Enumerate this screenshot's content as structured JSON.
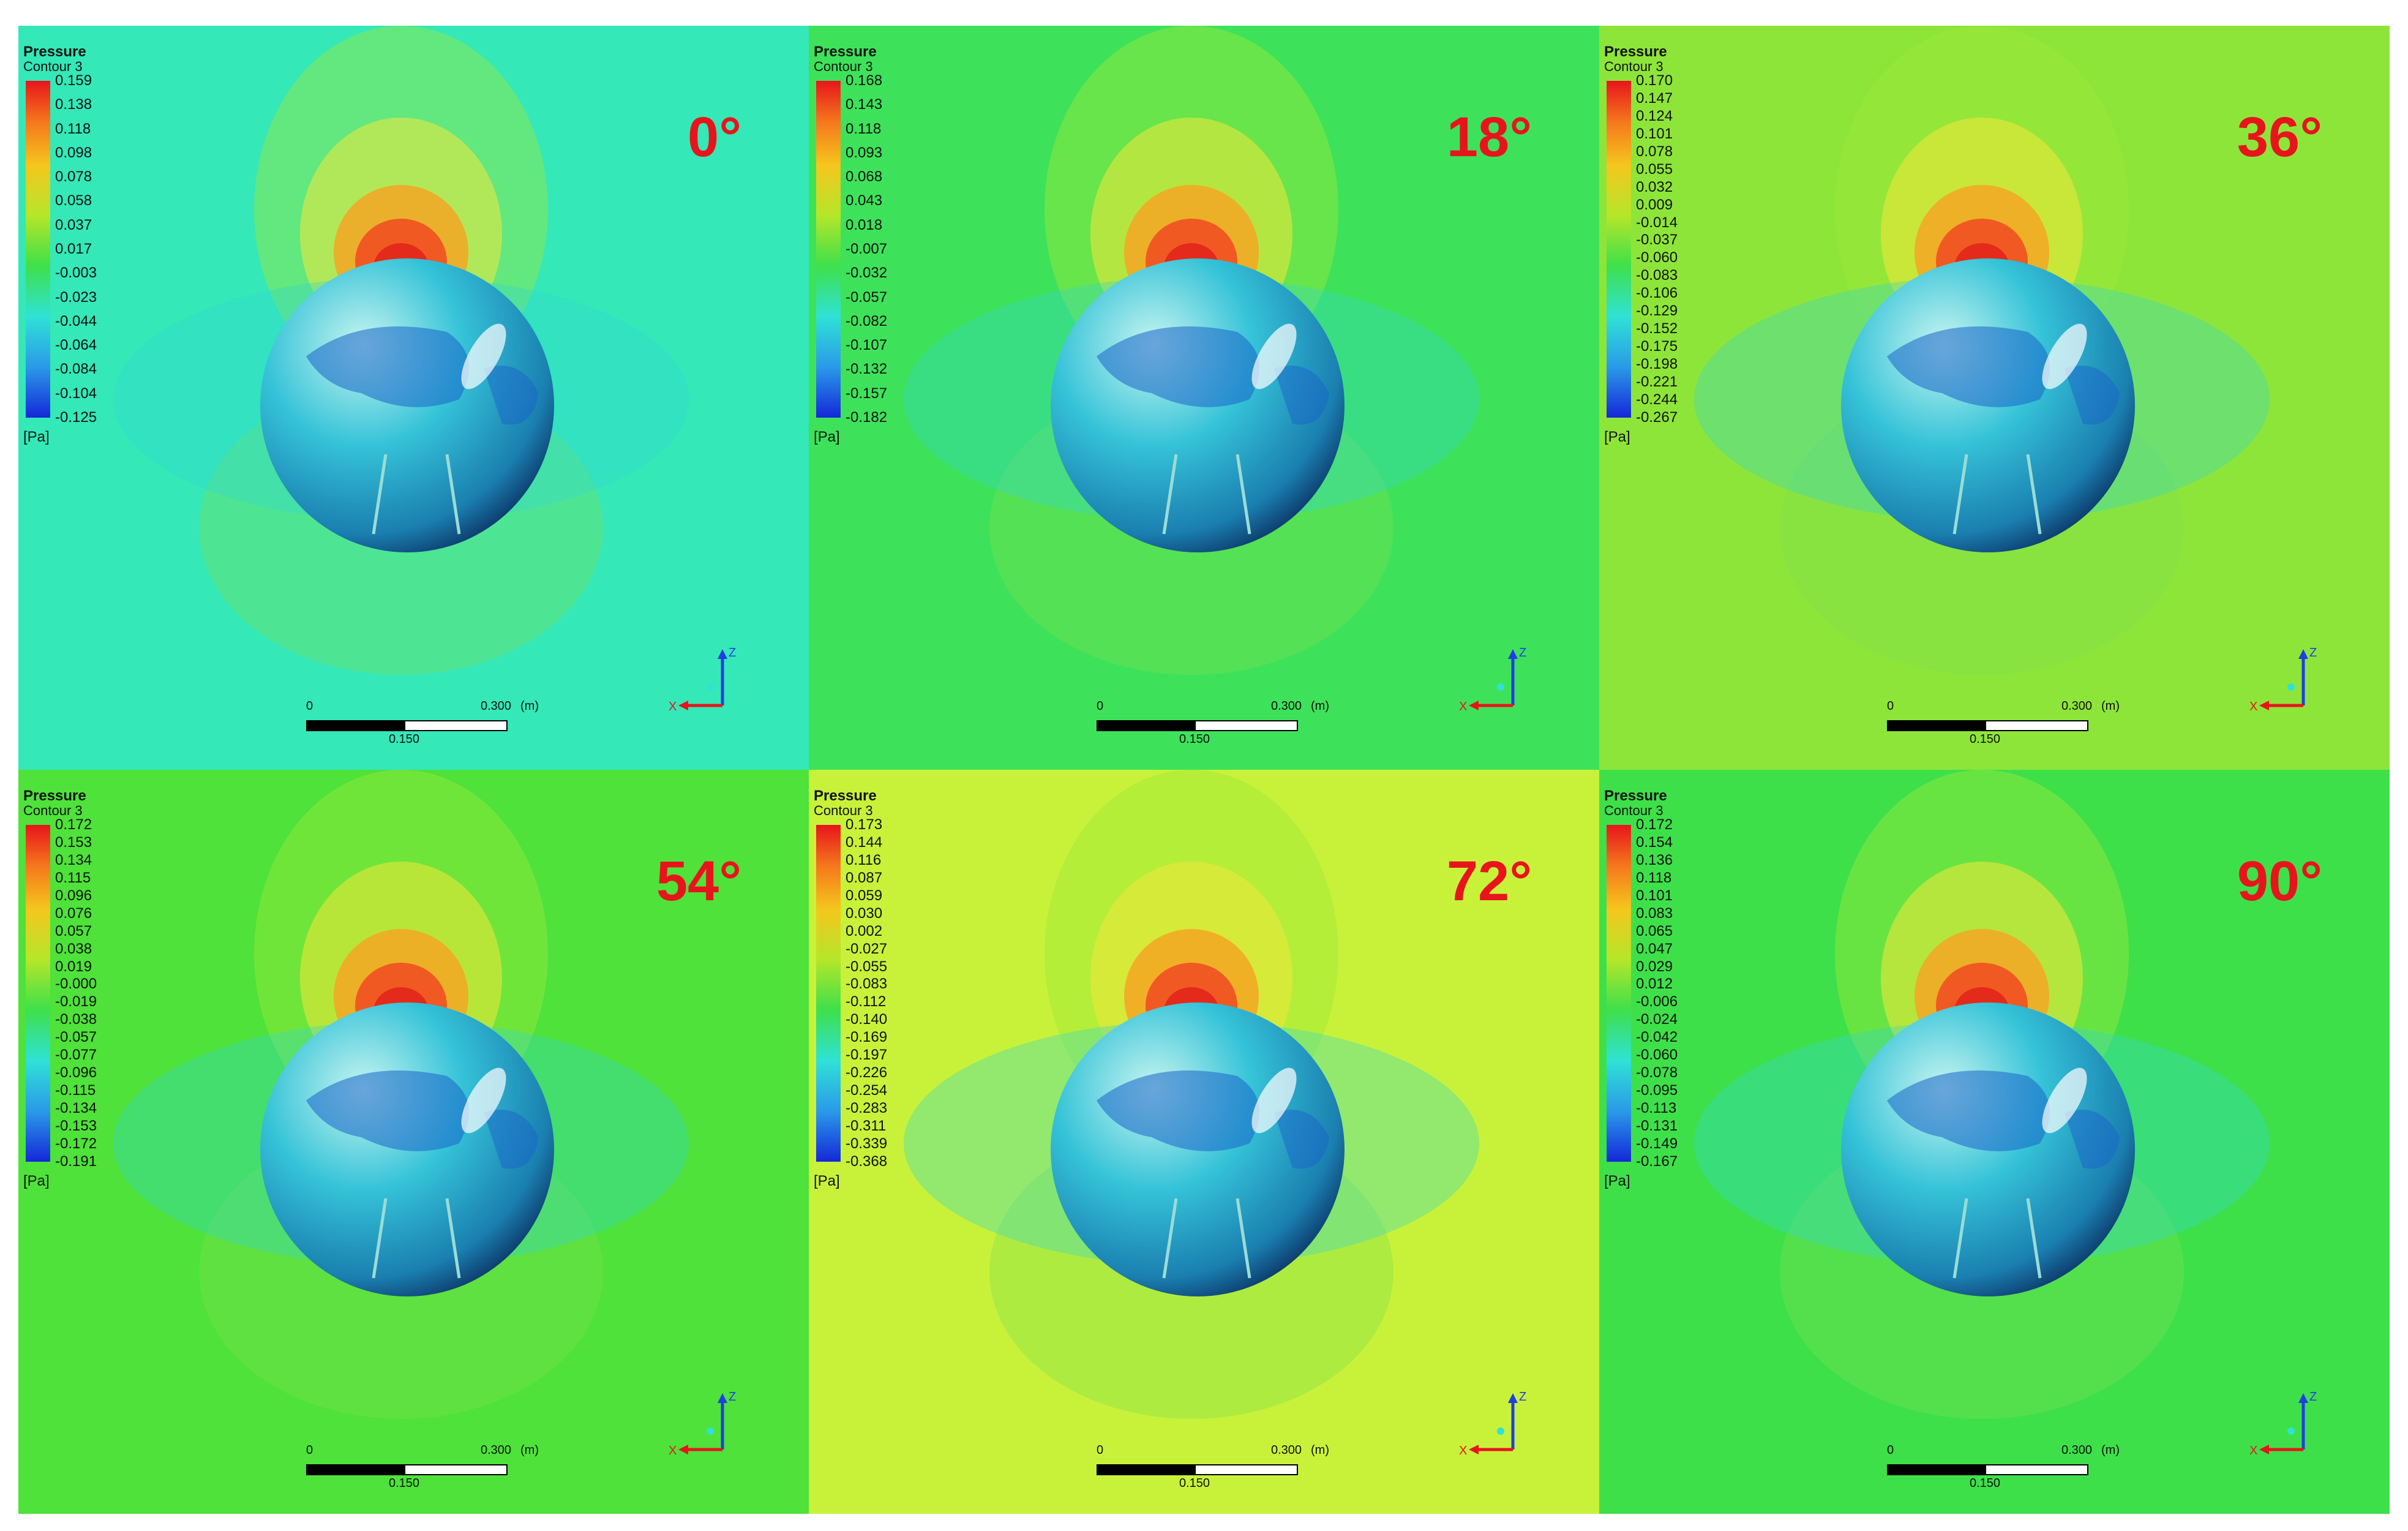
{
  "legend_title": "Pressure",
  "legend_subtitle": "Contour 3",
  "unit": "[Pa]",
  "scale_bar": {
    "left": "0",
    "right": "0.300",
    "unit": "(m)",
    "mid": "0.150"
  },
  "axis_labels": {
    "z": "Z",
    "x": "X",
    "y": "Y"
  },
  "colors": {
    "angle_text": "#e8141c"
  },
  "panels": [
    {
      "angle": "0°",
      "bg": "#34e8b8",
      "ticks": [
        "0.159",
        "0.138",
        "0.118",
        "0.098",
        "0.078",
        "0.058",
        "0.037",
        "0.017",
        "-0.003",
        "-0.023",
        "-0.044",
        "-0.064",
        "-0.084",
        "-0.104",
        "-0.125"
      ]
    },
    {
      "angle": "18°",
      "bg": "#3ee25a",
      "ticks": [
        "0.168",
        "0.143",
        "0.118",
        "0.093",
        "0.068",
        "0.043",
        "0.018",
        "-0.007",
        "-0.032",
        "-0.057",
        "-0.082",
        "-0.107",
        "-0.132",
        "-0.157",
        "-0.182"
      ]
    },
    {
      "angle": "36°",
      "bg": "#8ee53a",
      "ticks": [
        "0.170",
        "0.147",
        "0.124",
        "0.101",
        "0.078",
        "0.055",
        "0.032",
        "0.009",
        "-0.014",
        "-0.037",
        "-0.060",
        "-0.083",
        "-0.106",
        "-0.129",
        "-0.152",
        "-0.175",
        "-0.198",
        "-0.221",
        "-0.244",
        "-0.267"
      ]
    },
    {
      "angle": "54°",
      "bg": "#4ee23a",
      "ticks": [
        "0.172",
        "0.153",
        "0.134",
        "0.115",
        "0.096",
        "0.076",
        "0.057",
        "0.038",
        "0.019",
        "-0.000",
        "-0.019",
        "-0.038",
        "-0.057",
        "-0.077",
        "-0.096",
        "-0.115",
        "-0.134",
        "-0.153",
        "-0.172",
        "-0.191"
      ]
    },
    {
      "angle": "72°",
      "bg": "#c8f23a",
      "ticks": [
        "0.173",
        "0.144",
        "0.116",
        "0.087",
        "0.059",
        "0.030",
        "0.002",
        "-0.027",
        "-0.055",
        "-0.083",
        "-0.112",
        "-0.140",
        "-0.169",
        "-0.197",
        "-0.226",
        "-0.254",
        "-0.283",
        "-0.311",
        "-0.339",
        "-0.368"
      ]
    },
    {
      "angle": "90°",
      "bg": "#3ee04a",
      "ticks": [
        "0.172",
        "0.154",
        "0.136",
        "0.118",
        "0.101",
        "0.083",
        "0.065",
        "0.047",
        "0.029",
        "0.012",
        "-0.006",
        "-0.024",
        "-0.042",
        "-0.060",
        "-0.078",
        "-0.095",
        "-0.113",
        "-0.131",
        "-0.149",
        "-0.167"
      ]
    }
  ]
}
